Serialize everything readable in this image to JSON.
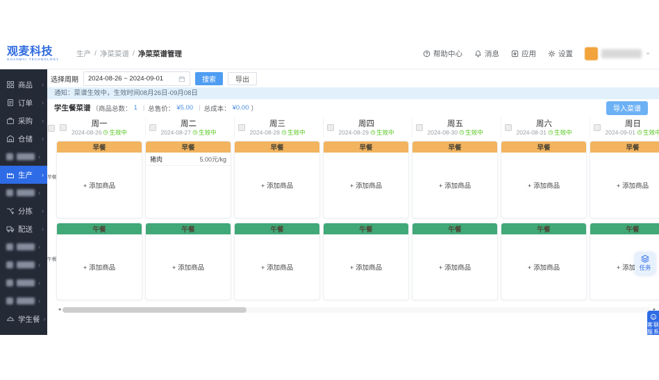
{
  "app": {
    "logo": {
      "title": "观麦科技",
      "subtitle": "GUANMAI TECHNOLOGY"
    },
    "breadcrumb": {
      "items": [
        "生产",
        "净菜菜谱"
      ],
      "current": "净菜菜谱管理",
      "separator": "/"
    },
    "topbar_menu": [
      {
        "label": "帮助中心",
        "icon": "help-icon"
      },
      {
        "label": "消息",
        "icon": "bell-icon"
      },
      {
        "label": "应用",
        "icon": "apps-icon"
      },
      {
        "label": "设置",
        "icon": "gear-icon"
      }
    ]
  },
  "sidebar": {
    "chevron": "›",
    "items": [
      {
        "label": "商品",
        "icon": "goods-icon",
        "censored": false,
        "active": false
      },
      {
        "label": "订单",
        "icon": "order-icon",
        "censored": false,
        "active": false
      },
      {
        "label": "采购",
        "icon": "purchase-icon",
        "censored": false,
        "active": false
      },
      {
        "label": "仓储",
        "icon": "warehouse-icon",
        "censored": false,
        "active": false
      },
      {
        "label": "",
        "icon": "",
        "censored": true,
        "active": false
      },
      {
        "label": "生产",
        "icon": "production-icon",
        "censored": false,
        "active": true
      },
      {
        "label": "",
        "icon": "",
        "censored": true,
        "active": false
      },
      {
        "label": "分拣",
        "icon": "sorting-icon",
        "censored": false,
        "active": false
      },
      {
        "label": "配送",
        "icon": "delivery-icon",
        "censored": false,
        "active": false
      },
      {
        "label": "",
        "icon": "",
        "censored": true,
        "active": false
      },
      {
        "label": "",
        "icon": "",
        "censored": true,
        "active": false
      },
      {
        "label": "",
        "icon": "",
        "censored": true,
        "active": false
      },
      {
        "label": "",
        "icon": "",
        "censored": true,
        "active": false
      },
      {
        "label": "学生餐",
        "icon": "student-meal-icon",
        "censored": false,
        "active": false
      }
    ]
  },
  "filter": {
    "label": "选择周期",
    "date_range": "2024-08-26 ~ 2024-09-01",
    "search_label": "搜索",
    "export_label": "导出"
  },
  "notice": {
    "text": "通知：菜谱生效中，生效时间08月26日-09月08日"
  },
  "summary": {
    "title": "学生餐菜谱",
    "open": "（",
    "close": "）",
    "separator": "|",
    "stats": [
      {
        "label": "商品总数：",
        "value": "1"
      },
      {
        "label": "总售价：",
        "value": "¥5.00"
      },
      {
        "label": "总成本：",
        "value": "¥0.00"
      }
    ]
  },
  "import_button": {
    "label": "导入菜谱"
  },
  "week": {
    "days": [
      {
        "label": "周一",
        "date": "2024-08-26",
        "status": "生效中"
      },
      {
        "label": "周二",
        "date": "2024-08-27",
        "status": "生效中"
      },
      {
        "label": "周三",
        "date": "2024-08-28",
        "status": "生效中"
      },
      {
        "label": "周四",
        "date": "2024-08-29",
        "status": "生效中"
      },
      {
        "label": "周五",
        "date": "2024-08-30",
        "status": "生效中"
      },
      {
        "label": "周六",
        "date": "2024-08-31",
        "status": "生效中"
      },
      {
        "label": "周日",
        "date": "2024-09-01",
        "status": "生效中"
      }
    ]
  },
  "meals": {
    "add_label": "+ 添加商品",
    "rows": [
      {
        "label": "早餐",
        "header_color": "#f2b45f",
        "columns": [
          {
            "items": []
          },
          {
            "items": [
              {
                "name": "猪肉",
                "price": "5.00元/kg"
              }
            ]
          },
          {
            "items": []
          },
          {
            "items": []
          },
          {
            "items": []
          },
          {
            "items": []
          },
          {
            "items": []
          }
        ]
      },
      {
        "label": "午餐",
        "header_color": "#41a877",
        "columns": [
          {
            "items": []
          },
          {
            "items": []
          },
          {
            "items": []
          },
          {
            "items": []
          },
          {
            "items": []
          },
          {
            "items": []
          },
          {
            "items": []
          }
        ]
      }
    ]
  },
  "scrollbar": {
    "left_arrow": "◂",
    "right_arrow": "▸"
  },
  "floating": {
    "task": {
      "label": "任务",
      "icon": "layers-icon"
    },
    "contact": {
      "label": "联系客服",
      "icon": "headset-icon"
    }
  },
  "colors": {
    "accent": "#2e6be6",
    "breakfast_header": "#f2b45f",
    "lunch_header": "#41a877",
    "status_green": "#52c41a",
    "notice_bg": "#e1f0fa",
    "value_blue": "#4a90e2"
  }
}
